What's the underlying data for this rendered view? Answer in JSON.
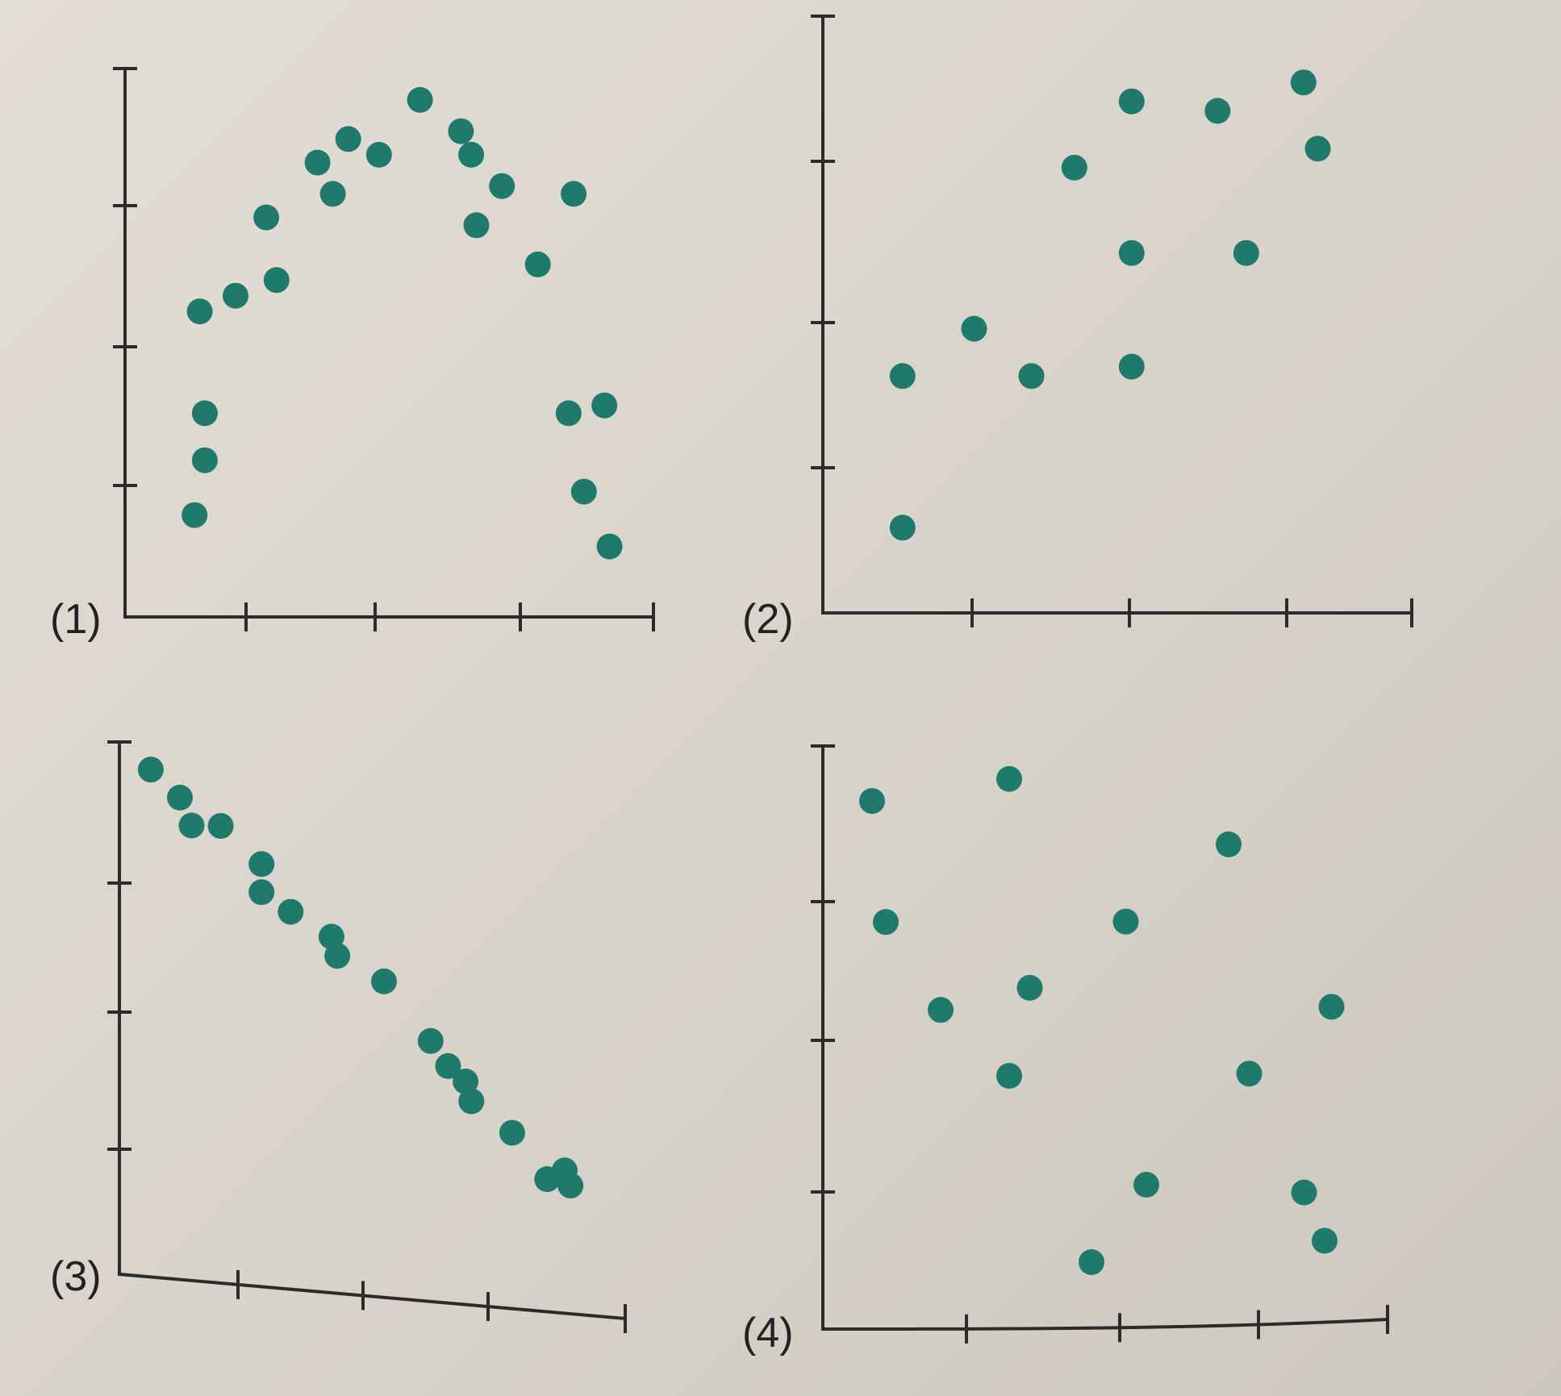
{
  "colors": {
    "point": "#1f7a6c",
    "axis": "#2b2b2b",
    "paper": "#dcd7ce"
  },
  "chart_data": [
    {
      "type": "scatter",
      "label": "(1)",
      "points": [
        [
          0.6,
          1.3
        ],
        [
          0.7,
          2.0
        ],
        [
          0.7,
          2.6
        ],
        [
          0.65,
          3.9
        ],
        [
          1.0,
          4.1
        ],
        [
          1.3,
          5.1
        ],
        [
          1.4,
          4.3
        ],
        [
          1.8,
          5.8
        ],
        [
          1.95,
          5.4
        ],
        [
          2.1,
          6.1
        ],
        [
          2.4,
          5.9
        ],
        [
          2.8,
          6.6
        ],
        [
          3.2,
          6.2
        ],
        [
          3.3,
          5.9
        ],
        [
          3.35,
          5.0
        ],
        [
          3.6,
          5.5
        ],
        [
          3.95,
          4.5
        ],
        [
          4.3,
          5.4
        ],
        [
          4.25,
          2.6
        ],
        [
          4.4,
          1.6
        ],
        [
          4.6,
          2.7
        ],
        [
          4.65,
          0.9
        ]
      ]
    },
    {
      "type": "scatter",
      "label": "(2)",
      "points": [
        [
          0.5,
          0.9
        ],
        [
          0.5,
          2.5
        ],
        [
          1.0,
          3.0
        ],
        [
          1.4,
          2.5
        ],
        [
          1.7,
          4.7
        ],
        [
          2.1,
          3.8
        ],
        [
          2.1,
          2.6
        ],
        [
          2.1,
          5.4
        ],
        [
          2.7,
          5.3
        ],
        [
          2.9,
          3.8
        ],
        [
          3.3,
          5.6
        ],
        [
          3.4,
          4.9
        ]
      ]
    },
    {
      "type": "scatter",
      "label": "(3)",
      "points": [
        [
          0.2,
          5.5
        ],
        [
          0.45,
          5.2
        ],
        [
          0.55,
          4.9
        ],
        [
          0.8,
          4.9
        ],
        [
          1.15,
          4.5
        ],
        [
          1.15,
          4.2
        ],
        [
          1.4,
          4.0
        ],
        [
          1.75,
          3.75
        ],
        [
          1.8,
          3.55
        ],
        [
          2.2,
          3.3
        ],
        [
          2.6,
          2.7
        ],
        [
          2.75,
          2.45
        ],
        [
          2.9,
          2.3
        ],
        [
          2.95,
          2.1
        ],
        [
          3.3,
          1.8
        ],
        [
          3.6,
          1.35
        ],
        [
          3.75,
          1.45
        ],
        [
          3.8,
          1.3
        ]
      ]
    },
    {
      "type": "scatter",
      "label": "(4)",
      "points": [
        [
          0.3,
          4.8
        ],
        [
          0.4,
          3.7
        ],
        [
          0.8,
          2.9
        ],
        [
          1.3,
          5.0
        ],
        [
          1.3,
          2.3
        ],
        [
          1.45,
          3.1
        ],
        [
          1.9,
          0.6
        ],
        [
          2.15,
          3.7
        ],
        [
          2.3,
          1.3
        ],
        [
          2.9,
          4.4
        ],
        [
          3.05,
          2.3
        ],
        [
          3.45,
          1.2
        ],
        [
          3.6,
          0.75
        ],
        [
          3.65,
          2.9
        ]
      ]
    }
  ]
}
